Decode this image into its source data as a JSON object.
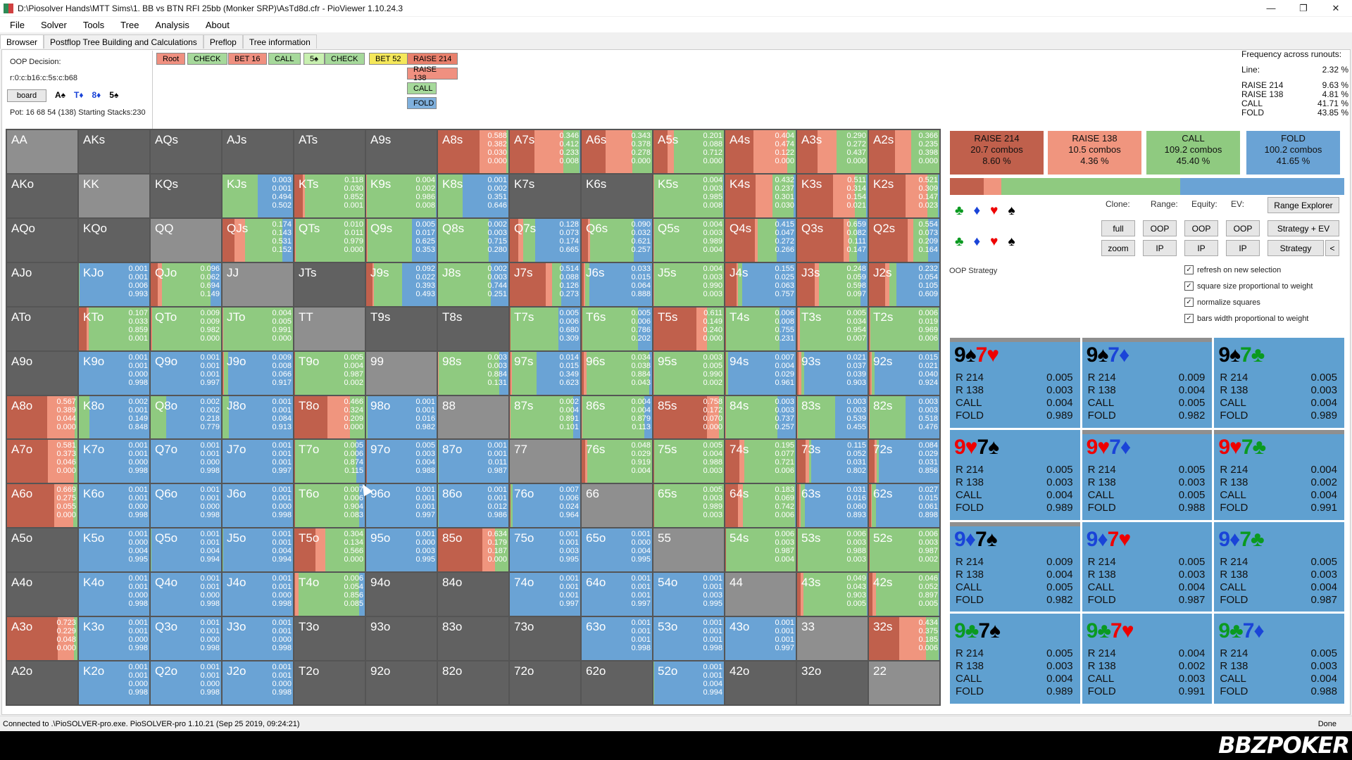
{
  "window": {
    "title": "D:\\Piosolver Hands\\MTT Sims\\1. BB vs BTN RFI 25bb (Monker SRP)\\AsTd8d.cfr - PioViewer 1.10.24.3"
  },
  "menu": [
    "File",
    "Solver",
    "Tools",
    "Tree",
    "Analysis",
    "About"
  ],
  "tabs": [
    "Browser",
    "Postflop Tree Building and Calculations",
    "Preflop",
    "Tree information"
  ],
  "info": {
    "decision": "OOP Decision:",
    "line": "r:0:c:b16:c:5s:c:b68",
    "board_btn": "board",
    "board_cards": [
      "A♠",
      "T♦",
      "8♦",
      "5♠"
    ],
    "pot": "Pot: 16 68 54 (138) Starting Stacks:230"
  },
  "tree": {
    "nodes": [
      "Root",
      "CHECK",
      "BET 16",
      "CALL",
      "5♠",
      "CHECK",
      "BET 52",
      "RAISE 214"
    ],
    "options": [
      "RAISE 138",
      "CALL",
      "FOLD"
    ],
    "colors": [
      "#f09080",
      "#a6d99b",
      "#f09080",
      "#a6d99b",
      "#c8f0b0",
      "#a6d99b",
      "#f5e85a",
      "#e8806c"
    ]
  },
  "freq": {
    "title": "Frequency across runouts:",
    "line_label": "Line:",
    "line_value": "2.32 %",
    "rows": [
      [
        "RAISE 214",
        "9.63 %"
      ],
      [
        "RAISE 138",
        "4.81 %"
      ],
      [
        "CALL",
        "41.71 %"
      ],
      [
        "FOLD",
        "43.85 %"
      ]
    ]
  },
  "colors": {
    "raise_big": "#c0604c",
    "raise_small": "#f0957e",
    "call": "#8fca80",
    "fold": "#6aa3d5",
    "cell_bg": "#616161",
    "pair_bg": "#8f8f8f"
  },
  "grid": [
    [
      [
        "AA",
        "",
        ""
      ],
      [
        "AKs",
        "",
        ""
      ],
      [
        "AQs",
        "",
        ""
      ],
      [
        "AJs",
        "",
        ""
      ],
      [
        "ATs",
        "",
        ""
      ],
      [
        "A9s",
        "",
        ""
      ],
      [
        "A8s",
        "0.588 0.382 0.030 0.000",
        "r"
      ],
      [
        "A7s",
        "0.346 0.412 0.233 0.008",
        "r"
      ],
      [
        "A6s",
        "0.343 0.378 0.278 0.000",
        "r"
      ],
      [
        "A5s",
        "0.201 0.088 0.712 0.000",
        "r"
      ],
      [
        "A4s",
        "0.404 0.474 0.122 0.000",
        "r"
      ],
      [
        "A3s",
        "0.290 0.272 0.437 0.000",
        "r"
      ],
      [
        "A2s",
        "0.366 0.235 0.398 0.000",
        "r"
      ]
    ],
    [
      [
        "AKo",
        "",
        ""
      ],
      [
        "KK",
        "",
        ""
      ],
      [
        "KQs",
        "",
        ""
      ],
      [
        "KJs",
        "0.003 0.001 0.494 0.502",
        "c"
      ],
      [
        "KTs",
        "0.118 0.030 0.852 0.001",
        "c"
      ],
      [
        "K9s",
        "0.004 0.002 0.986 0.008",
        "c"
      ],
      [
        "K8s",
        "0.001 0.002 0.351 0.646",
        "f"
      ],
      [
        "K7s",
        "",
        ""
      ],
      [
        "K6s",
        "",
        ""
      ],
      [
        "K5s",
        "0.004 0.003 0.985 0.008",
        "c"
      ],
      [
        "K4s",
        "0.432 0.237 0.301 0.030",
        "r"
      ],
      [
        "K3s",
        "0.511 0.314 0.154 0.021",
        "r"
      ],
      [
        "K2s",
        "0.521 0.309 0.147 0.023",
        "r"
      ]
    ],
    [
      [
        "AQo",
        "",
        ""
      ],
      [
        "KQo",
        "",
        ""
      ],
      [
        "QQ",
        "",
        ""
      ],
      [
        "QJs",
        "0.174 0.143 0.531 0.152",
        "c"
      ],
      [
        "QTs",
        "0.010 0.011 0.979 0.000",
        "c"
      ],
      [
        "Q9s",
        "0.005 0.017 0.625 0.353",
        "c"
      ],
      [
        "Q8s",
        "0.002 0.003 0.715 0.280",
        "c"
      ],
      [
        "Q7s",
        "0.128 0.073 0.174 0.665",
        "f"
      ],
      [
        "Q6s",
        "0.090 0.032 0.621 0.257",
        "c"
      ],
      [
        "Q5s",
        "0.004 0.003 0.989 0.004",
        "c"
      ],
      [
        "Q4s",
        "0.415 0.047 0.272 0.266",
        "r"
      ],
      [
        "Q3s",
        "0.659 0.082 0.111 0.147",
        "r"
      ],
      [
        "Q2s",
        "0.554 0.073 0.209 0.164",
        "r"
      ]
    ],
    [
      [
        "AJo",
        "",
        ""
      ],
      [
        "KJo",
        "0.001 0.001 0.006 0.993",
        "f"
      ],
      [
        "QJo",
        "0.096 0.062 0.694 0.149",
        "c"
      ],
      [
        "JJ",
        "",
        ""
      ],
      [
        "JTs",
        "",
        ""
      ],
      [
        "J9s",
        "0.092 0.022 0.393 0.493",
        "c"
      ],
      [
        "J8s",
        "0.002 0.003 0.744 0.251",
        "c"
      ],
      [
        "J7s",
        "0.514 0.088 0.126 0.273",
        "r"
      ],
      [
        "J6s",
        "0.033 0.015 0.064 0.888",
        "f"
      ],
      [
        "J5s",
        "0.004 0.003 0.990 0.003",
        "c"
      ],
      [
        "J4s",
        "0.155 0.025 0.063 0.757",
        "f"
      ],
      [
        "J3s",
        "0.248 0.059 0.598 0.097",
        "c"
      ],
      [
        "J2s",
        "0.232 0.054 0.105 0.609",
        "f"
      ]
    ],
    [
      [
        "ATo",
        "",
        ""
      ],
      [
        "KTo",
        "0.107 0.033 0.859 0.001",
        "c"
      ],
      [
        "QTo",
        "0.009 0.009 0.982 0.000",
        "c"
      ],
      [
        "JTo",
        "0.004 0.005 0.991 0.000",
        "c"
      ],
      [
        "TT",
        "",
        ""
      ],
      [
        "T9s",
        "",
        ""
      ],
      [
        "T8s",
        "",
        ""
      ],
      [
        "T7s",
        "0.005 0.006 0.680 0.309",
        "c"
      ],
      [
        "T6s",
        "0.005 0.006 0.786 0.202",
        "c"
      ],
      [
        "T5s",
        "0.611 0.149 0.240 0.000",
        "r"
      ],
      [
        "T4s",
        "0.006 0.008 0.755 0.231",
        "c"
      ],
      [
        "T3s",
        "0.005 0.034 0.954 0.007",
        "c"
      ],
      [
        "T2s",
        "0.006 0.019 0.969 0.006",
        "c"
      ]
    ],
    [
      [
        "A9o",
        "",
        ""
      ],
      [
        "K9o",
        "0.001 0.001 0.000 0.998",
        "f"
      ],
      [
        "Q9o",
        "0.001 0.001 0.001 0.997",
        "f"
      ],
      [
        "J9o",
        "0.009 0.008 0.066 0.917",
        "f"
      ],
      [
        "T9o",
        "0.005 0.004 0.987 0.002",
        "c"
      ],
      [
        "99",
        "",
        ""
      ],
      [
        "98s",
        "0.003 0.003 0.884 0.131",
        "c"
      ],
      [
        "97s",
        "0.014 0.015 0.349 0.623",
        "f"
      ],
      [
        "96s",
        "0.034 0.038 0.884 0.043",
        "c"
      ],
      [
        "95s",
        "0.003 0.005 0.990 0.002",
        "c"
      ],
      [
        "94s",
        "0.007 0.004 0.029 0.961",
        "f"
      ],
      [
        "93s",
        "0.021 0.037 0.039 0.903",
        "f"
      ],
      [
        "92s",
        "0.015 0.021 0.040 0.924",
        "f"
      ]
    ],
    [
      [
        "A8o",
        "0.567 0.389 0.044 0.000",
        "r"
      ],
      [
        "K8o",
        "0.002 0.001 0.149 0.848",
        "f"
      ],
      [
        "Q8o",
        "0.002 0.002 0.218 0.779",
        "f"
      ],
      [
        "J8o",
        "0.001 0.001 0.084 0.913",
        "f"
      ],
      [
        "T8o",
        "0.466 0.324 0.209 0.000",
        "r"
      ],
      [
        "98o",
        "0.001 0.001 0.016 0.982",
        "f"
      ],
      [
        "88",
        "",
        ""
      ],
      [
        "87s",
        "0.002 0.004 0.891 0.101",
        "c"
      ],
      [
        "86s",
        "0.004 0.004 0.879 0.113",
        "c"
      ],
      [
        "85s",
        "0.758 0.172 0.070 0.000",
        "r"
      ],
      [
        "84s",
        "0.003 0.003 0.737 0.257",
        "c"
      ],
      [
        "83s",
        "0.003 0.003 0.539 0.455",
        "c"
      ],
      [
        "82s",
        "0.003 0.003 0.518 0.476",
        "c"
      ]
    ],
    [
      [
        "A7o",
        "0.581 0.373 0.046 0.000",
        "r"
      ],
      [
        "K7o",
        "0.001 0.001 0.000 0.998",
        "f"
      ],
      [
        "Q7o",
        "0.001 0.001 0.000 0.998",
        "f"
      ],
      [
        "J7o",
        "0.001 0.001 0.001 0.997",
        "f"
      ],
      [
        "T7o",
        "0.005 0.006 0.874 0.115",
        "c"
      ],
      [
        "97o",
        "0.005 0.003 0.004 0.988",
        "f"
      ],
      [
        "87o",
        "0.001 0.001 0.011 0.987",
        "f"
      ],
      [
        "77",
        "",
        ""
      ],
      [
        "76s",
        "0.048 0.029 0.919 0.004",
        "c"
      ],
      [
        "75s",
        "0.005 0.004 0.988 0.003",
        "c"
      ],
      [
        "74s",
        "0.195 0.077 0.721 0.006",
        "c"
      ],
      [
        "73s",
        "0.115 0.052 0.031 0.802",
        "f"
      ],
      [
        "72s",
        "0.084 0.029 0.031 0.856",
        "f"
      ]
    ],
    [
      [
        "A6o",
        "0.669 0.275 0.055 0.000",
        "r"
      ],
      [
        "K6o",
        "0.001 0.001 0.000 0.998",
        "f"
      ],
      [
        "Q6o",
        "0.001 0.001 0.000 0.998",
        "f"
      ],
      [
        "J6o",
        "0.001 0.001 0.000 0.998",
        "f"
      ],
      [
        "T6o",
        "0.007 0.006 0.904 0.083",
        "c"
      ],
      [
        "96o",
        "0.001 0.001 0.001 0.997",
        "f"
      ],
      [
        "86o",
        "0.001 0.001 0.012 0.986",
        "f"
      ],
      [
        "76o",
        "0.007 0.006 0.024 0.964",
        "f"
      ],
      [
        "66",
        "",
        ""
      ],
      [
        "65s",
        "0.005 0.003 0.989 0.003",
        "c"
      ],
      [
        "64s",
        "0.183 0.069 0.742 0.006",
        "c"
      ],
      [
        "63s",
        "0.031 0.016 0.060 0.893",
        "f"
      ],
      [
        "62s",
        "0.027 0.015 0.061 0.898",
        "f"
      ]
    ],
    [
      [
        "A5o",
        "",
        ""
      ],
      [
        "K5o",
        "0.001 0.000 0.004 0.995",
        "f"
      ],
      [
        "Q5o",
        "0.001 0.001 0.004 0.994",
        "f"
      ],
      [
        "J5o",
        "0.001 0.001 0.004 0.994",
        "f"
      ],
      [
        "T5o",
        "0.304 0.134 0.566 0.000",
        "r"
      ],
      [
        "95o",
        "0.001 0.000 0.003 0.995",
        "f"
      ],
      [
        "85o",
        "0.634 0.179 0.187 0.000",
        "r"
      ],
      [
        "75o",
        "0.001 0.001 0.003 0.995",
        "f"
      ],
      [
        "65o",
        "0.001 0.000 0.004 0.995",
        "f"
      ],
      [
        "55",
        "",
        ""
      ],
      [
        "54s",
        "0.006 0.003 0.987 0.004",
        "c"
      ],
      [
        "53s",
        "0.006 0.003 0.988 0.003",
        "c"
      ],
      [
        "52s",
        "0.006 0.003 0.987 0.002",
        "c"
      ]
    ],
    [
      [
        "A4o",
        "",
        ""
      ],
      [
        "K4o",
        "0.001 0.001 0.000 0.998",
        "f"
      ],
      [
        "Q4o",
        "0.001 0.001 0.000 0.998",
        "f"
      ],
      [
        "J4o",
        "0.001 0.001 0.000 0.998",
        "f"
      ],
      [
        "T4o",
        "0.006 0.054 0.856 0.085",
        "c"
      ],
      [
        "94o",
        "",
        ""
      ],
      [
        "84o",
        "",
        ""
      ],
      [
        "74o",
        "0.001 0.001 0.001 0.997",
        "f"
      ],
      [
        "64o",
        "0.001 0.001 0.001 0.997",
        "f"
      ],
      [
        "54o",
        "0.001 0.001 0.003 0.995",
        "f"
      ],
      [
        "44",
        "",
        ""
      ],
      [
        "43s",
        "0.049 0.043 0.903 0.005",
        "c"
      ],
      [
        "42s",
        "0.046 0.052 0.897 0.005",
        "c"
      ]
    ],
    [
      [
        "A3o",
        "0.723 0.229 0.048 0.000",
        "r"
      ],
      [
        "K3o",
        "0.001 0.001 0.000 0.998",
        "f"
      ],
      [
        "Q3o",
        "0.001 0.001 0.000 0.998",
        "f"
      ],
      [
        "J3o",
        "0.001 0.001 0.000 0.998",
        "f"
      ],
      [
        "T3o",
        "",
        ""
      ],
      [
        "93o",
        "",
        ""
      ],
      [
        "83o",
        "",
        ""
      ],
      [
        "73o",
        "",
        ""
      ],
      [
        "63o",
        "0.001 0.001 0.001 0.998",
        "f"
      ],
      [
        "53o",
        "0.001 0.001 0.001 0.998",
        "f"
      ],
      [
        "43o",
        "0.001 0.001 0.001 0.997",
        "f"
      ],
      [
        "33",
        "",
        ""
      ],
      [
        "32s",
        "0.434 0.375 0.185 0.006",
        "r"
      ]
    ],
    [
      [
        "A2o",
        "",
        ""
      ],
      [
        "K2o",
        "0.001 0.001 0.000 0.998",
        "f"
      ],
      [
        "Q2o",
        "0.001 0.001 0.000 0.998",
        "f"
      ],
      [
        "J2o",
        "0.001 0.001 0.000 0.998",
        "f"
      ],
      [
        "T2o",
        "",
        ""
      ],
      [
        "92o",
        "",
        ""
      ],
      [
        "82o",
        "",
        ""
      ],
      [
        "72o",
        "",
        ""
      ],
      [
        "62o",
        "",
        ""
      ],
      [
        "52o",
        "0.001 0.001 0.004 0.994",
        "f"
      ],
      [
        "42o",
        "",
        ""
      ],
      [
        "32o",
        "",
        ""
      ],
      [
        "22",
        "",
        ""
      ]
    ]
  ],
  "summary": [
    {
      "label": "RAISE 214",
      "combos": "20.7 combos",
      "pct": "8.60 %",
      "color": "#c0604c"
    },
    {
      "label": "RAISE 138",
      "combos": "10.5 combos",
      "pct": "4.36 %",
      "color": "#f0957e"
    },
    {
      "label": "CALL",
      "combos": "109.2 combos",
      "pct": "45.40 %",
      "color": "#8fca80"
    },
    {
      "label": "FOLD",
      "combos": "100.2 combos",
      "pct": "41.65 %",
      "color": "#6aa3d5"
    }
  ],
  "controls": {
    "clone": "Clone:",
    "range": "Range:",
    "equity": "Equity:",
    "ev": "EV:",
    "range_explorer": "Range Explorer",
    "full": "full",
    "zoom": "zoom",
    "oop": "OOP",
    "ip": "IP",
    "strategy_ev": "Strategy + EV",
    "strategy": "Strategy",
    "arrow": "<",
    "oop_strategy": "OOP Strategy"
  },
  "checkboxes": [
    "refresh on new selection",
    "square size proportional to weight",
    "normalize squares",
    "bars width proportional to weight"
  ],
  "combos": [
    {
      "r1": "9",
      "s1": "♠",
      "c1": "#000",
      "r2": "7",
      "s2": "♥",
      "c2": "#e00",
      "vals": [
        "0.005",
        "0.003",
        "0.004",
        "0.989"
      ],
      "top": "grey"
    },
    {
      "r1": "9",
      "s1": "♠",
      "c1": "#000",
      "r2": "7",
      "s2": "♦",
      "c2": "#1a44d8",
      "vals": [
        "0.009",
        "0.004",
        "0.005",
        "0.982"
      ],
      "top": "grey"
    },
    {
      "r1": "9",
      "s1": "♠",
      "c1": "#000",
      "r2": "7",
      "s2": "♣",
      "c2": "#0a9a20",
      "vals": [
        "0.005",
        "0.003",
        "0.004",
        "0.989"
      ],
      "top": "blue"
    },
    {
      "r1": "9",
      "s1": "♥",
      "c1": "#e00",
      "r2": "7",
      "s2": "♠",
      "c2": "#000",
      "vals": [
        "0.005",
        "0.003",
        "0.004",
        "0.989"
      ],
      "top": "blue"
    },
    {
      "r1": "9",
      "s1": "♥",
      "c1": "#e00",
      "r2": "7",
      "s2": "♦",
      "c2": "#1a44d8",
      "vals": [
        "0.005",
        "0.003",
        "0.005",
        "0.988"
      ],
      "top": "grey"
    },
    {
      "r1": "9",
      "s1": "♥",
      "c1": "#e00",
      "r2": "7",
      "s2": "♣",
      "c2": "#0a9a20",
      "vals": [
        "0.004",
        "0.002",
        "0.004",
        "0.991"
      ],
      "top": "grey"
    },
    {
      "r1": "9",
      "s1": "♦",
      "c1": "#1a44d8",
      "r2": "7",
      "s2": "♠",
      "c2": "#000",
      "vals": [
        "0.009",
        "0.004",
        "0.005",
        "0.982"
      ],
      "top": "grey"
    },
    {
      "r1": "9",
      "s1": "♦",
      "c1": "#1a44d8",
      "r2": "7",
      "s2": "♥",
      "c2": "#e00",
      "vals": [
        "0.005",
        "0.003",
        "0.004",
        "0.987"
      ],
      "top": "blue"
    },
    {
      "r1": "9",
      "s1": "♦",
      "c1": "#1a44d8",
      "r2": "7",
      "s2": "♣",
      "c2": "#0a9a20",
      "vals": [
        "0.005",
        "0.003",
        "0.004",
        "0.987"
      ],
      "top": "blue"
    },
    {
      "r1": "9",
      "s1": "♣",
      "c1": "#0a9a20",
      "r2": "7",
      "s2": "♠",
      "c2": "#000",
      "vals": [
        "0.005",
        "0.003",
        "0.004",
        "0.989"
      ],
      "top": "blue"
    },
    {
      "r1": "9",
      "s1": "♣",
      "c1": "#0a9a20",
      "r2": "7",
      "s2": "♥",
      "c2": "#e00",
      "vals": [
        "0.004",
        "0.002",
        "0.003",
        "0.991"
      ],
      "top": "blue"
    },
    {
      "r1": "9",
      "s1": "♣",
      "c1": "#0a9a20",
      "r2": "7",
      "s2": "♦",
      "c2": "#1a44d8",
      "vals": [
        "0.005",
        "0.003",
        "0.004",
        "0.988"
      ],
      "top": "blue"
    }
  ],
  "combo_labels": [
    "R 214",
    "R 138",
    "CALL",
    "FOLD"
  ],
  "status": {
    "text": "Connected to .\\PioSOLVER-pro.exe. PioSOLVER-pro 1.10.21 (Sep 25 2019, 09:24:21)",
    "done": "Done"
  },
  "logo": "BBZPOKER"
}
